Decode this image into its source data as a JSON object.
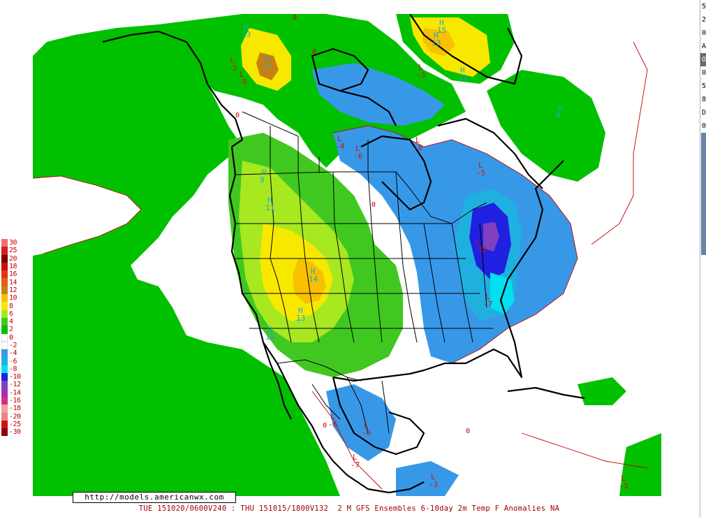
{
  "map": {
    "labels": [
      {
        "kind": "H",
        "value": "13",
        "loc": "alaska-north"
      },
      {
        "kind": "H",
        "value": "17",
        "loc": "yukon"
      },
      {
        "kind": "L",
        "value": "-3",
        "loc": "alaska-west"
      },
      {
        "kind": "L",
        "value": "-9",
        "loc": "alaska-south"
      },
      {
        "kind": "H",
        "value": "15",
        "loc": "greenland"
      },
      {
        "kind": "H",
        "value": "13",
        "loc": "greenland-north"
      },
      {
        "kind": "H",
        "value": "13",
        "loc": "greenland-south"
      },
      {
        "kind": "L",
        "value": "-3",
        "loc": "baffin"
      },
      {
        "kind": "H",
        "value": "9",
        "loc": "bc"
      },
      {
        "kind": "H",
        "value": "11",
        "loc": "alberta"
      },
      {
        "kind": "H",
        "value": "14",
        "loc": "wyoming"
      },
      {
        "kind": "H",
        "value": "13",
        "loc": "colorado"
      },
      {
        "kind": "H",
        "value": "10",
        "loc": "california"
      },
      {
        "kind": "L",
        "value": "-4",
        "loc": "nunavut"
      },
      {
        "kind": "L",
        "value": "-6",
        "loc": "hudson-west"
      },
      {
        "kind": "L",
        "value": "-8",
        "loc": "hudson-east"
      },
      {
        "kind": "L",
        "value": "-5",
        "loc": "labrador"
      },
      {
        "kind": "L",
        "value": "-11",
        "loc": "new-england"
      },
      {
        "kind": "L",
        "value": "-7",
        "loc": "virginia"
      },
      {
        "kind": "L",
        "value": "-6",
        "loc": "mexico-west"
      },
      {
        "kind": "L",
        "value": "-6",
        "loc": "mexico-central"
      },
      {
        "kind": "L",
        "value": "-7",
        "loc": "mexico-south"
      },
      {
        "kind": "L",
        "value": "-3",
        "loc": "central-america"
      },
      {
        "kind": "L",
        "value": "-3",
        "loc": "south-america"
      },
      {
        "kind": "H",
        "value": "8",
        "loc": "atlantic"
      }
    ],
    "contour_zero_label": "0"
  },
  "legend": {
    "items": [
      {
        "label": "30",
        "color": "#f07070"
      },
      {
        "label": "25",
        "color": "#d02020"
      },
      {
        "label": "20",
        "color": "#800000"
      },
      {
        "label": "18",
        "color": "#c81010"
      },
      {
        "label": "16",
        "color": "#e83010"
      },
      {
        "label": "14",
        "color": "#e06010"
      },
      {
        "label": "12",
        "color": "#c88010"
      },
      {
        "label": "10",
        "color": "#f8c000"
      },
      {
        "label": "8",
        "color": "#f8e800"
      },
      {
        "label": "6",
        "color": "#a8e820"
      },
      {
        "label": "4",
        "color": "#40c820"
      },
      {
        "label": "2",
        "color": "#00c000"
      },
      {
        "label": "0",
        "color": "#ffffff"
      },
      {
        "label": "-2",
        "color": "#ffffff"
      },
      {
        "label": "-4",
        "color": "#3898e8"
      },
      {
        "label": "-6",
        "color": "#20b0e0"
      },
      {
        "label": "-8",
        "color": "#00e0f0"
      },
      {
        "label": "-10",
        "color": "#2020e0"
      },
      {
        "label": "-12",
        "color": "#8040c0"
      },
      {
        "label": "-14",
        "color": "#a030b0"
      },
      {
        "label": "-16",
        "color": "#d03080"
      },
      {
        "label": "-18",
        "color": "#f0a0a0"
      },
      {
        "label": "-20",
        "color": "#f08080"
      },
      {
        "label": "-25",
        "color": "#d01010"
      },
      {
        "label": "-30",
        "color": "#900000"
      }
    ]
  },
  "credit": "http://models.americanwx.com",
  "footer": "TUE 151020/0600V240 : THU 151015/1800V132  2 M GFS Ensembles 6-10day 2m Temp F Anomalies NA",
  "side_panel": {
    "chars": [
      "5",
      "2",
      "0",
      "A",
      "O",
      "0",
      "5",
      "8",
      "D",
      "0"
    ]
  },
  "colors": {
    "green": "#00c000",
    "light_green": "#40c820",
    "yellow_green": "#a8e820",
    "yellow": "#f8e800",
    "orange": "#f8c000",
    "brown": "#c88010",
    "blue": "#3898e8",
    "dark_blue": "#2020e0",
    "cyan": "#00e0f0",
    "contour": "#c00000",
    "border": "#000000"
  }
}
